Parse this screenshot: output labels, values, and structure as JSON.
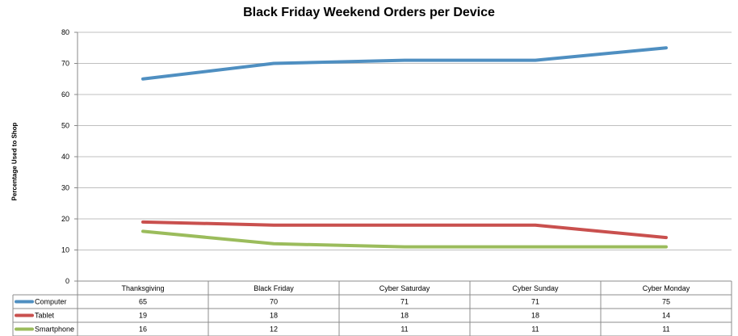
{
  "chart_data": {
    "type": "line",
    "title": "Black Friday Weekend Orders per Device",
    "xlabel": "",
    "ylabel": "Percentage Used to Shop",
    "ylim": [
      0,
      80
    ],
    "yticks": [
      "0",
      "10",
      "20",
      "30",
      "40",
      "50",
      "60",
      "70",
      "80"
    ],
    "grid": true,
    "legend": "data-table-left",
    "categories": [
      "Thanksgiving",
      "Black Friday",
      "Cyber Saturday",
      "Cyber Sunday",
      "Cyber Monday"
    ],
    "series": [
      {
        "name": "Computer",
        "color": "#4f8fc1",
        "values": [
          65,
          70,
          71,
          71,
          75
        ]
      },
      {
        "name": "Tablet",
        "color": "#c9504e",
        "values": [
          19,
          18,
          18,
          18,
          14
        ]
      },
      {
        "name": "Smartphone",
        "color": "#9bbc5c",
        "values": [
          16,
          12,
          11,
          11,
          11
        ]
      }
    ]
  }
}
